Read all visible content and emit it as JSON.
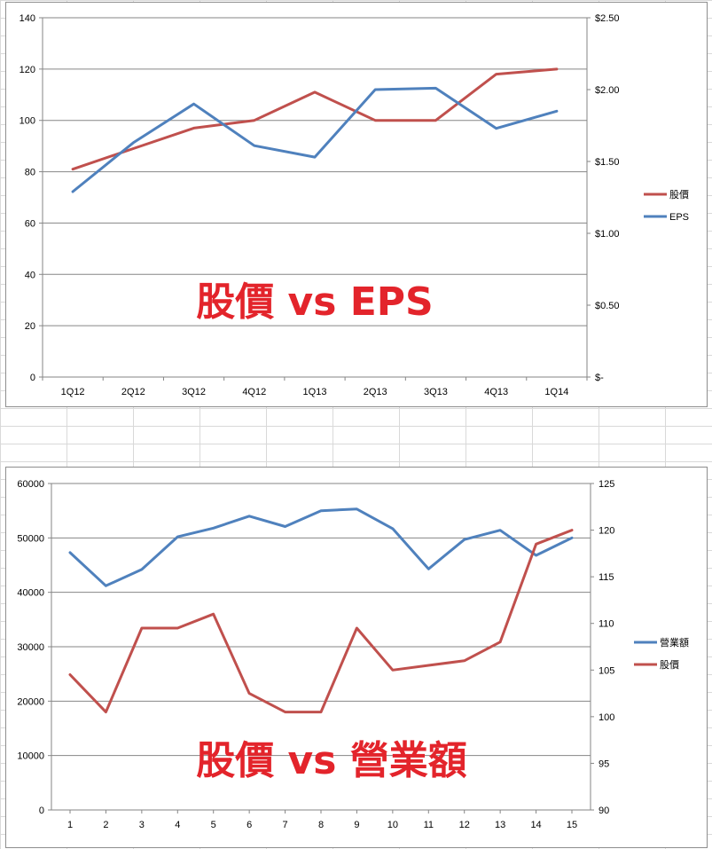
{
  "chart_data": [
    {
      "type": "line",
      "overlay_text": "股價 vs EPS",
      "categories": [
        "1Q12",
        "2Q12",
        "3Q12",
        "4Q12",
        "1Q13",
        "2Q13",
        "3Q13",
        "4Q13",
        "1Q14"
      ],
      "y_left": {
        "min": 0,
        "max": 140,
        "step": 20,
        "ticks": [
          "0",
          "20",
          "40",
          "60",
          "80",
          "100",
          "120",
          "140"
        ]
      },
      "y_right": {
        "min": 0,
        "max": 2.5,
        "step": 0.5,
        "ticks": [
          "$-",
          "$0.50",
          "$1.00",
          "$1.50",
          "$2.00",
          "$2.50"
        ]
      },
      "grid": true,
      "legend_position": "right",
      "series": [
        {
          "name": "股價",
          "axis": "left",
          "color": "#c0504d",
          "values": [
            81,
            89,
            97,
            100,
            111,
            100,
            100,
            118,
            120
          ]
        },
        {
          "name": "EPS",
          "axis": "right",
          "color": "#4f81bd",
          "values": [
            1.29,
            1.63,
            1.9,
            1.61,
            1.53,
            2.0,
            2.01,
            1.73,
            1.85
          ]
        }
      ]
    },
    {
      "type": "line",
      "overlay_text": "股價 vs 營業額",
      "categories": [
        "1",
        "2",
        "3",
        "4",
        "5",
        "6",
        "7",
        "8",
        "9",
        "10",
        "11",
        "12",
        "13",
        "14",
        "15"
      ],
      "y_left": {
        "min": 0,
        "max": 60000,
        "step": 10000,
        "ticks": [
          "0",
          "10000",
          "20000",
          "30000",
          "40000",
          "50000",
          "60000"
        ]
      },
      "y_right": {
        "min": 90,
        "max": 125,
        "step": 5,
        "ticks": [
          "90",
          "95",
          "100",
          "105",
          "110",
          "115",
          "120",
          "125"
        ]
      },
      "grid": true,
      "legend_position": "right",
      "series": [
        {
          "name": "營業額",
          "axis": "left",
          "color": "#4f81bd",
          "values": [
            47300,
            41200,
            44200,
            50200,
            51800,
            54000,
            52100,
            55000,
            55300,
            51700,
            44300,
            49700,
            51400,
            46800,
            50000
          ]
        },
        {
          "name": "股價",
          "axis": "right",
          "color": "#c0504d",
          "values": [
            104.5,
            100.5,
            109.5,
            109.5,
            111,
            102.5,
            100.5,
            100.5,
            109.5,
            105,
            105.5,
            106,
            108,
            118.5,
            120
          ]
        }
      ]
    }
  ]
}
